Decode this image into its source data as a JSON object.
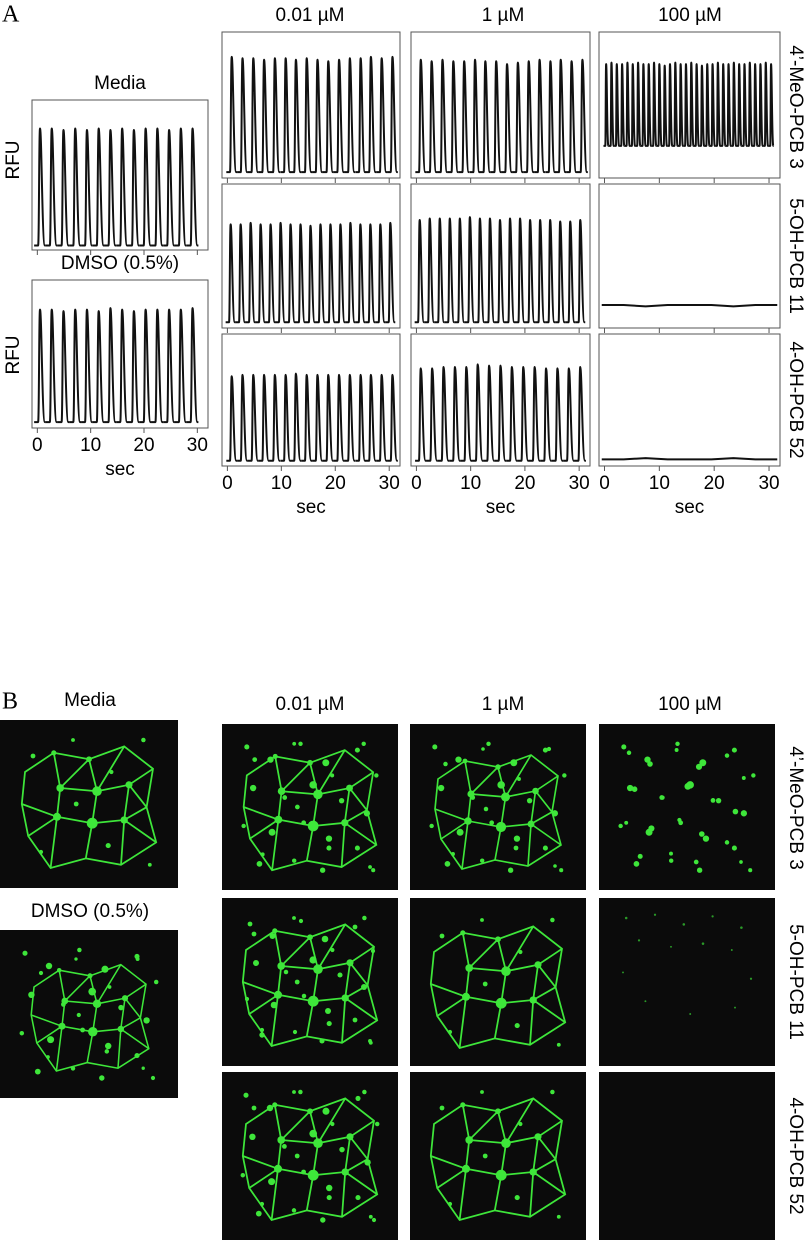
{
  "panel_a": {
    "label": "A",
    "column_titles": [
      "0.01 µM",
      "1 µM",
      "100 µM"
    ],
    "row_titles": [
      "4’-MeO-PCB 3",
      "5-OH-PCB 11",
      "4-OH-PCB 52"
    ],
    "y_label": "RFU",
    "x_label": "sec",
    "xlim": [
      -1,
      32
    ],
    "ylim": [
      0,
      1
    ],
    "xticks": [
      0,
      10,
      20,
      30
    ],
    "controls": [
      {
        "title": "Media",
        "x": [
          0.5,
          2.7,
          4.9,
          7.1,
          9.3,
          11.5,
          13.7,
          15.9,
          18.1,
          20.3,
          22.5,
          24.7,
          26.9,
          29.1
        ],
        "peaks": [
          0.81,
          0.81,
          0.8,
          0.81,
          0.8,
          0.81,
          0.8,
          0.81,
          0.8,
          0.81,
          0.81,
          0.8,
          0.81,
          0.81
        ],
        "trough": 0.03
      },
      {
        "title": "DMSO (0.5%)",
        "x": [
          0.5,
          2.7,
          4.9,
          7.1,
          9.3,
          11.5,
          13.7,
          15.9,
          18.1,
          20.3,
          22.5,
          24.7,
          26.9,
          29.1
        ],
        "peaks": [
          0.8,
          0.8,
          0.79,
          0.8,
          0.8,
          0.79,
          0.81,
          0.8,
          0.79,
          0.8,
          0.8,
          0.8,
          0.8,
          0.81
        ],
        "trough": 0.04
      }
    ],
    "traces": [
      [
        {
          "x": [
            0.8,
            2.8,
            4.8,
            6.8,
            8.8,
            10.8,
            12.7,
            14.7,
            16.7,
            18.7,
            20.7,
            22.7,
            24.7,
            26.6,
            28.6,
            30.6
          ],
          "peaks": [
            0.83,
            0.82,
            0.82,
            0.81,
            0.82,
            0.82,
            0.81,
            0.82,
            0.81,
            0.8,
            0.81,
            0.82,
            0.82,
            0.83,
            0.82,
            0.83
          ],
          "trough": 0.04
        },
        {
          "x": [
            0.8,
            2.8,
            4.8,
            6.8,
            8.8,
            10.8,
            12.7,
            14.7,
            16.7,
            18.7,
            20.7,
            22.7,
            24.7,
            26.6,
            28.6,
            30.6
          ],
          "peaks": [
            0.81,
            0.8,
            0.81,
            0.8,
            0.8,
            0.81,
            0.8,
            0.8,
            0.78,
            0.79,
            0.8,
            0.81,
            0.8,
            0.81,
            0.8,
            0.81
          ],
          "trough": 0.04
        },
        {
          "x": [
            0.3,
            1.27,
            2.24,
            3.21,
            4.18,
            5.15,
            6.12,
            7.09,
            8.06,
            9.03,
            10.0,
            10.97,
            11.94,
            12.91,
            13.88,
            14.85,
            15.82,
            16.79,
            17.76,
            18.73,
            19.7,
            20.67,
            21.64,
            22.61,
            23.58,
            24.55,
            25.52,
            26.49,
            27.46,
            28.43,
            29.4,
            30.37
          ],
          "peaks": [
            0.78,
            0.79,
            0.78,
            0.78,
            0.79,
            0.78,
            0.79,
            0.78,
            0.78,
            0.79,
            0.78,
            0.77,
            0.78,
            0.79,
            0.78,
            0.78,
            0.79,
            0.78,
            0.77,
            0.78,
            0.78,
            0.79,
            0.78,
            0.78,
            0.79,
            0.78,
            0.78,
            0.79,
            0.78,
            0.78,
            0.79,
            0.78
          ],
          "trough": 0.22
        }
      ],
      [
        {
          "x": [
            0.6,
            2.45,
            4.3,
            6.15,
            8.0,
            9.85,
            11.7,
            13.55,
            15.4,
            17.25,
            19.1,
            20.95,
            22.8,
            24.65,
            26.5,
            28.35,
            30.2
          ],
          "peaks": [
            0.72,
            0.72,
            0.73,
            0.72,
            0.72,
            0.73,
            0.72,
            0.72,
            0.71,
            0.72,
            0.72,
            0.72,
            0.73,
            0.72,
            0.72,
            0.72,
            0.73
          ],
          "trough": 0.04
        },
        {
          "x": [
            0.6,
            2.45,
            4.3,
            6.15,
            8.0,
            9.85,
            11.7,
            13.55,
            15.4,
            17.25,
            19.1,
            20.95,
            22.8,
            24.65,
            26.5,
            28.35,
            30.2
          ],
          "peaks": [
            0.75,
            0.76,
            0.76,
            0.76,
            0.76,
            0.77,
            0.76,
            0.76,
            0.75,
            0.76,
            0.76,
            0.75,
            0.75,
            0.75,
            0.74,
            0.74,
            0.75
          ],
          "trough": 0.04
        },
        {
          "x": [
            -0.5,
            3.5,
            7.5,
            11.5,
            15.5,
            19.5,
            23.5,
            27.5,
            31.5
          ],
          "values": [
            0.16,
            0.16,
            0.15,
            0.16,
            0.16,
            0.16,
            0.15,
            0.16,
            0.16
          ]
        }
      ],
      [
        {
          "x": [
            0.8,
            2.8,
            4.8,
            6.8,
            8.8,
            10.8,
            12.7,
            14.7,
            16.7,
            18.7,
            20.7,
            22.7,
            24.7,
            26.6,
            28.6,
            30.6
          ],
          "peaks": [
            0.68,
            0.69,
            0.69,
            0.69,
            0.69,
            0.69,
            0.7,
            0.69,
            0.69,
            0.69,
            0.69,
            0.69,
            0.69,
            0.69,
            0.69,
            0.69
          ],
          "trough": 0.04
        },
        {
          "x": [
            0.8,
            2.9,
            5.0,
            7.1,
            9.2,
            11.3,
            13.4,
            15.5,
            17.6,
            19.7,
            21.8,
            23.9,
            26.0,
            28.1,
            30.2
          ],
          "peaks": [
            0.74,
            0.74,
            0.75,
            0.75,
            0.75,
            0.77,
            0.76,
            0.76,
            0.75,
            0.75,
            0.75,
            0.74,
            0.74,
            0.74,
            0.75
          ],
          "trough": 0.04
        },
        {
          "x": [
            -0.5,
            3.5,
            7.5,
            11.5,
            15.5,
            19.5,
            23.5,
            27.5,
            31.5
          ],
          "values": [
            0.05,
            0.05,
            0.06,
            0.05,
            0.05,
            0.05,
            0.06,
            0.05,
            0.05
          ]
        }
      ]
    ]
  },
  "panel_b": {
    "label": "B",
    "column_titles": [
      "0.01 µM",
      "1 µM",
      "100 µM"
    ],
    "row_titles": [
      "4’-MeO-PCB 3",
      "5-OH-PCB 11",
      "4-OH-PCB 52"
    ],
    "controls": [
      "Media",
      "DMSO (0.5%)"
    ]
  }
}
